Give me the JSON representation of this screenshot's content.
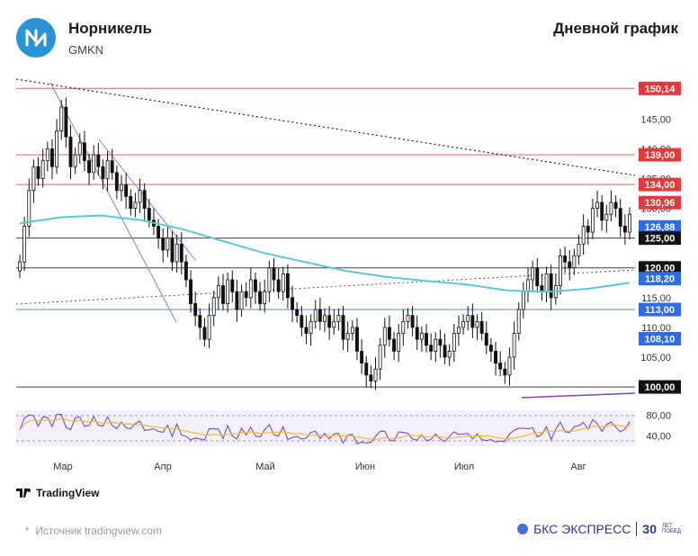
{
  "header": {
    "company": "Норникель",
    "ticker": "GMKN",
    "chart_kind": "Дневной график"
  },
  "footer": {
    "source": "Источник tradingview.com",
    "tv_brand": "TradingView",
    "brand": "БКС ЭКСПРЕСС",
    "brand_years": "30",
    "brand_years_sub": "ЛЕТ ПОБЕД"
  },
  "chart_data": {
    "type": "candlestick",
    "title": "",
    "ylim": [
      98.5,
      152
    ],
    "y_ticks": [
      145,
      140,
      135,
      130,
      125,
      115,
      110,
      105
    ],
    "x_ticks": [
      "Мар",
      "Апр",
      "Май",
      "Июн",
      "Июл",
      "Авг"
    ],
    "levels": [
      {
        "value": 150.14,
        "label": "150,14",
        "color": "#e0393e",
        "style": "solid"
      },
      {
        "value": 139.0,
        "label": "139,00",
        "color": "#e0393e",
        "style": "solid"
      },
      {
        "value": 134.0,
        "label": "134,00",
        "color": "#e0393e",
        "style": "solid"
      },
      {
        "value": 130.96,
        "label": "130,96",
        "color": "#e0393e",
        "style": "none"
      },
      {
        "value": 126.88,
        "label": "126,88",
        "color": "#2e6be6",
        "style": "none"
      },
      {
        "value": 125.0,
        "label": "125,00",
        "color": "#111111",
        "style": "solid"
      },
      {
        "value": 120.0,
        "label": "120,00",
        "color": "#111111",
        "style": "solid"
      },
      {
        "value": 118.2,
        "label": "118,20",
        "color": "#2e6be6",
        "style": "none"
      },
      {
        "value": 113.0,
        "label": "113,00",
        "color": "#2e6be6",
        "style": "solid"
      },
      {
        "value": 108.1,
        "label": "108,10",
        "color": "#2e6be6",
        "style": "none"
      },
      {
        "value": 100.0,
        "label": "100,00",
        "color": "#111111",
        "style": "solid"
      }
    ],
    "rsi": {
      "y_ticks": [
        80,
        40
      ],
      "band": [
        70,
        30
      ]
    },
    "closes": [
      121,
      127,
      133,
      137,
      135,
      138,
      140,
      137,
      143,
      147,
      142,
      137,
      139,
      141,
      138,
      136,
      139,
      137,
      135,
      138,
      136,
      133,
      134,
      132,
      130,
      131,
      133,
      130,
      128,
      127,
      125,
      123,
      125,
      121,
      124,
      121,
      118,
      114,
      112,
      110,
      108,
      112,
      115,
      117,
      114,
      118,
      116,
      113,
      116,
      115,
      118,
      116,
      114,
      116,
      120,
      118,
      116,
      119,
      115,
      113,
      112,
      110,
      109,
      111,
      113,
      111,
      112,
      110,
      111,
      112,
      108,
      109,
      110,
      106,
      104,
      102,
      101,
      103,
      107,
      110,
      108,
      106,
      109,
      111,
      112,
      110,
      108,
      109,
      107,
      106,
      108,
      107,
      105,
      106,
      109,
      110,
      111,
      112,
      110,
      111,
      109,
      107,
      106,
      104,
      103,
      102,
      105,
      109,
      113,
      116,
      118,
      120,
      117,
      116,
      119,
      115,
      117,
      122,
      121,
      120,
      122,
      124,
      127,
      126,
      130,
      131,
      128,
      129,
      131,
      130,
      127,
      126,
      129
    ],
    "ma": [
      127.5,
      128.5,
      128.8,
      128.0,
      126.5,
      124.5,
      122.5,
      121.0,
      119.5,
      118.5,
      117.8,
      117.2,
      116.2,
      116.0,
      116.5,
      117.5
    ]
  }
}
